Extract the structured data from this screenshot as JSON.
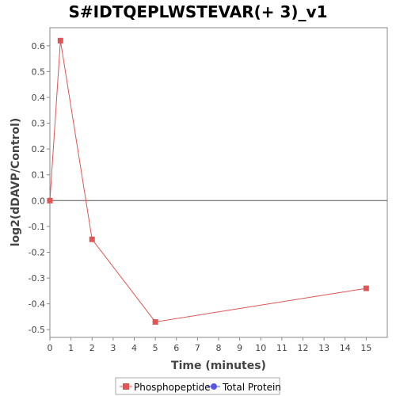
{
  "chart_data": {
    "type": "line",
    "title": "S#IDTQEPLWSTEVAR(+ 3)_v1",
    "xlabel": "Time (minutes)",
    "ylabel": "log2(dDAVP/Control)",
    "xlim": [
      0,
      16
    ],
    "ylim": [
      -0.53,
      0.67
    ],
    "xticks": [
      0,
      1,
      2,
      3,
      4,
      5,
      6,
      7,
      8,
      9,
      10,
      11,
      12,
      13,
      14,
      15
    ],
    "yticks": [
      -0.5,
      -0.4,
      -0.3,
      -0.2,
      -0.1,
      0.0,
      0.1,
      0.2,
      0.3,
      0.4,
      0.5,
      0.6
    ],
    "ytick_labels": [
      "-0.5",
      "-0.4",
      "-0.3",
      "-0.2",
      "-0.1",
      "0.0",
      "0.1",
      "0.2",
      "0.3",
      "0.4",
      "0.5",
      "0.6"
    ],
    "zero_line": true,
    "grid": false,
    "legend_position": "bottom",
    "series": [
      {
        "name": "Phosphopeptide",
        "color": "#e05555",
        "marker": "square",
        "x": [
          0,
          0.5,
          2,
          5,
          15
        ],
        "y": [
          0.0,
          0.62,
          -0.15,
          -0.47,
          -0.34
        ]
      },
      {
        "name": "Total Protein",
        "color": "#5555e8",
        "marker": "circle",
        "x": [],
        "y": []
      }
    ]
  }
}
